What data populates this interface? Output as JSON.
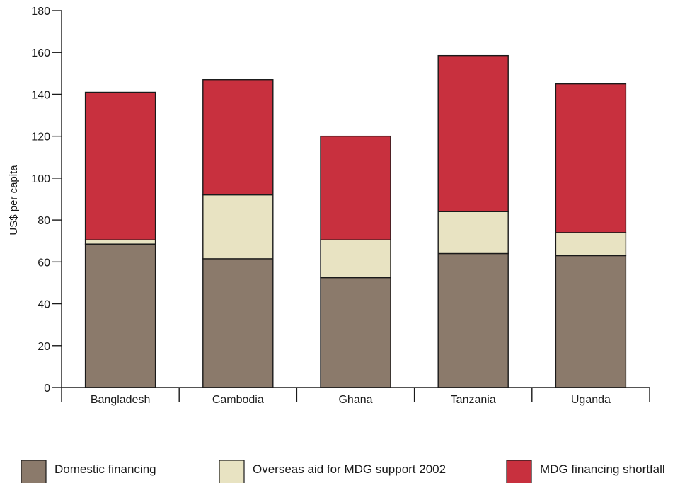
{
  "chart_data": {
    "type": "bar",
    "stacked": true,
    "categories": [
      "Bangladesh",
      "Cambodia",
      "Ghana",
      "Tanzania",
      "Uganda"
    ],
    "series": [
      {
        "name": "Domestic financing",
        "values": [
          68.5,
          61.5,
          52.5,
          64,
          63
        ],
        "color": "#8b7a6b"
      },
      {
        "name": "Overseas aid for MDG support 2002",
        "values": [
          2,
          30.5,
          18,
          20,
          11
        ],
        "color": "#e8e3c2"
      },
      {
        "name": "MDG financing shortfall",
        "values": [
          70.5,
          55,
          49.5,
          74.5,
          71
        ],
        "color": "#c8303e"
      }
    ],
    "title": "",
    "xlabel": "",
    "ylabel": "US$ per capita",
    "ylim": [
      0,
      180
    ],
    "yticks": [
      "0",
      "20",
      "40",
      "60",
      "80",
      "100",
      "120",
      "140",
      "160",
      "180"
    ],
    "grid": false,
    "legend_position": "bottom"
  }
}
